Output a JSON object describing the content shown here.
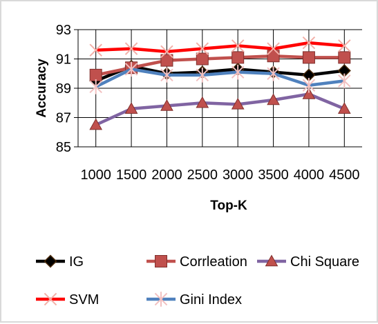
{
  "chart_data": {
    "type": "line",
    "title": "",
    "xlabel": "Top-K",
    "ylabel": "Accuracy",
    "categories": [
      "1000",
      "1500",
      "2000",
      "2500",
      "3000",
      "3500",
      "4000",
      "4500"
    ],
    "yticks": [
      "85",
      "87",
      "89",
      "91",
      "93"
    ],
    "ylim": [
      85,
      93
    ],
    "grid": "horizontal",
    "legend_position": "bottom",
    "series": [
      {
        "name": "IG",
        "color": "#000000",
        "marker": "diamond",
        "values": [
          89.5,
          90.5,
          90.0,
          90.1,
          90.3,
          90.1,
          89.9,
          90.2
        ]
      },
      {
        "name": "Corrleation",
        "color": "#c0504d",
        "marker": "square",
        "values": [
          89.9,
          90.4,
          90.9,
          91.0,
          91.1,
          91.2,
          91.1,
          91.1
        ]
      },
      {
        "name": "Chi Square",
        "color": "#8064a2",
        "marker": "triangle",
        "values": [
          86.5,
          87.6,
          87.8,
          88.0,
          87.9,
          88.2,
          88.6,
          87.6
        ]
      },
      {
        "name": "SVM",
        "color": "#ff0000",
        "marker": "x",
        "values": [
          91.6,
          91.7,
          91.5,
          91.7,
          91.9,
          91.7,
          92.1,
          91.9
        ]
      },
      {
        "name": "Gini Index",
        "color": "#4f81bd",
        "marker": "asterisk",
        "values": [
          89.1,
          90.3,
          89.9,
          89.9,
          90.1,
          90.0,
          89.2,
          89.5
        ]
      }
    ]
  }
}
